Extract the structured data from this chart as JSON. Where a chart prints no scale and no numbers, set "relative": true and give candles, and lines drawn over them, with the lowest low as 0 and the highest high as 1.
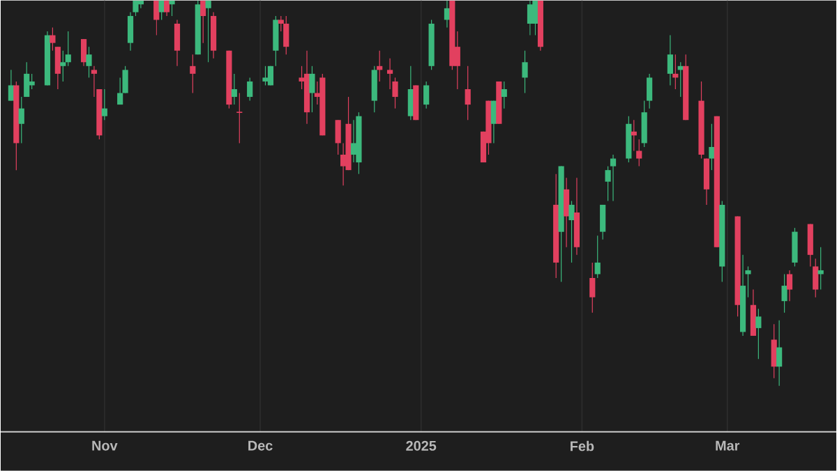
{
  "chart_data": {
    "type": "candlestick",
    "relative": true,
    "grid": "x",
    "colors": [
      "#3cb97d",
      "#e2405f",
      "#3cb97d",
      "#3cb97d",
      "#3cb97d",
      "#3cb97d",
      "#e2405f",
      "#e2405f",
      "#3cb97d",
      "#3cb97d",
      "#e2405f",
      "#3cb97d",
      "#e2405f",
      "#e2405f",
      "#3cb97d",
      "#3cb97d",
      "#3cb97d",
      "#3cb97d",
      "#3cb97d",
      "#3cb97d",
      "#e2405f",
      "#3cb97d",
      "#e2405f",
      "#3cb97d",
      "#e2405f",
      "#e2405f",
      "#3cb97d",
      "#e2405f",
      "#3cb97d",
      "#e2405f",
      "#e2405f",
      "#3cb97d",
      "#e2405f",
      "#3cb97d",
      "#3cb97d",
      "#3cb97d",
      "#3cb97d",
      "#e2405f",
      "#e2405f",
      "#e2405f",
      "#e2405f",
      "#3cb97d",
      "#e2405f",
      "#e2405f",
      "#e2405f",
      "#e2405f",
      "#e2405f",
      "#3cb97d",
      "#3cb97d",
      "#3cb97d",
      "#e2405f",
      "#e2405f",
      "#e2405f",
      "#3cb97d",
      "#e2405f",
      "#3cb97d",
      "#3cb97d",
      "#3cb97d",
      "#e2405f",
      "#e2405f",
      "#e2405f",
      "#e2405f",
      "#e2405f",
      "#3cb97d",
      "#e2405f",
      "#3cb97d",
      "#3cb97d",
      "#3cb97d",
      "#3cb97d",
      "#e2405f",
      "#e2405f",
      "#3cb97d",
      "#e2405f",
      "#3cb97d",
      "#e2405f",
      "#e2405f",
      "#3cb97d",
      "#3cb97d",
      "#3cb97d",
      "#3cb97d",
      "#3cb97d",
      "#e2405f",
      "#e2405f",
      "#3cb97d",
      "#3cb97d",
      "#3cb97d",
      "#e2405f",
      "#3cb97d",
      "#e2405f",
      "#e2405f",
      "#e2405f",
      "#3cb97d",
      "#e2405f",
      "#3cb97d",
      "#e2405f",
      "#3cb97d",
      "#3cb97d",
      "#e2405f",
      "#3cb97d",
      "#e2405f",
      "#3cb97d",
      "#3cb97d",
      "#e2405f",
      "#3cb97d",
      "#e2405f",
      "#e2405f",
      "#3cb97d"
    ],
    "xlim": [
      "2024-10-12",
      "2025-03-22"
    ],
    "xticks": [
      {
        "value": "2024-11-01",
        "label": "Nov"
      },
      {
        "value": "2024-12-01",
        "label": "Dec"
      },
      {
        "value": "2025-01-01",
        "label": "2025"
      },
      {
        "value": "2025-02-01",
        "label": "Feb"
      },
      {
        "value": "2025-03-01",
        "label": "Mar"
      }
    ],
    "x": [
      "2024-10-14",
      "2024-10-15",
      "2024-10-16",
      "2024-10-17",
      "2024-10-18",
      "2024-10-21",
      "2024-10-22",
      "2024-10-23",
      "2024-10-24",
      "2024-10-25",
      "2024-10-28",
      "2024-10-29",
      "2024-10-30",
      "2024-10-31",
      "2024-11-01",
      "2024-11-04",
      "2024-11-05",
      "2024-11-06",
      "2024-11-07",
      "2024-11-08",
      "2024-11-11",
      "2024-11-12",
      "2024-11-13",
      "2024-11-14",
      "2024-11-15",
      "2024-11-18",
      "2024-11-19",
      "2024-11-20",
      "2024-11-21",
      "2024-11-22",
      "2024-11-25",
      "2024-11-26",
      "2024-11-27",
      "2024-11-29",
      "2024-12-02",
      "2024-12-03",
      "2024-12-04",
      "2024-12-05",
      "2024-12-06",
      "2024-12-09",
      "2024-12-10",
      "2024-12-11",
      "2024-12-12",
      "2024-12-13",
      "2024-12-16",
      "2024-12-17",
      "2024-12-18",
      "2024-12-19",
      "2024-12-20",
      "2024-12-23",
      "2024-12-24",
      "2024-12-26",
      "2024-12-27",
      "2024-12-30",
      "2024-12-31",
      "2025-01-02",
      "2025-01-03",
      "2025-01-06",
      "2025-01-07",
      "2025-01-08",
      "2025-01-10",
      "2025-01-13",
      "2025-01-14",
      "2025-01-15",
      "2025-01-16",
      "2025-01-17",
      "2025-01-21",
      "2025-01-22",
      "2025-01-23",
      "2025-01-24",
      "2025-01-27",
      "2025-01-28",
      "2025-01-29",
      "2025-01-30",
      "2025-01-31",
      "2025-02-03",
      "2025-02-04",
      "2025-02-05",
      "2025-02-06",
      "2025-02-07",
      "2025-02-10",
      "2025-02-11",
      "2025-02-12",
      "2025-02-13",
      "2025-02-14",
      "2025-02-18",
      "2025-02-19",
      "2025-02-20",
      "2025-02-21",
      "2025-02-24",
      "2025-02-25",
      "2025-02-26",
      "2025-02-27",
      "2025-02-28",
      "2025-03-03",
      "2025-03-04",
      "2025-03-05",
      "2025-03-06",
      "2025-03-07",
      "2025-03-10",
      "2025-03-11",
      "2025-03-12",
      "2025-03-13",
      "2025-03-14",
      "2025-03-17",
      "2025-03-18",
      "2025-03-19"
    ],
    "ohlc": [
      [
        0.74,
        0.82,
        0.74,
        0.78
      ],
      [
        0.78,
        0.79,
        0.56,
        0.63
      ],
      [
        0.68,
        0.75,
        0.63,
        0.72
      ],
      [
        0.75,
        0.84,
        0.75,
        0.81
      ],
      [
        0.78,
        0.81,
        0.77,
        0.79
      ],
      [
        0.78,
        0.92,
        0.78,
        0.91
      ],
      [
        0.91,
        0.93,
        0.87,
        0.89
      ],
      [
        0.88,
        0.88,
        0.77,
        0.81
      ],
      [
        0.83,
        0.87,
        0.79,
        0.84
      ],
      [
        0.84,
        0.92,
        0.83,
        0.86
      ],
      [
        0.9,
        0.9,
        0.83,
        0.84
      ],
      [
        0.83,
        0.88,
        0.8,
        0.86
      ],
      [
        0.82,
        0.83,
        0.75,
        0.81
      ],
      [
        0.77,
        0.77,
        0.64,
        0.65
      ],
      [
        0.7,
        0.77,
        0.69,
        0.72
      ],
      [
        0.73,
        0.8,
        0.73,
        0.76
      ],
      [
        0.76,
        0.83,
        0.76,
        0.82
      ],
      [
        0.89,
        0.97,
        0.87,
        0.96
      ],
      [
        0.97,
        1,
        0.96,
        1
      ],
      [
        0.99,
        1,
        0.98,
        1
      ],
      [
        1,
        1,
        0.91,
        0.95
      ],
      [
        0.97,
        1,
        0.95,
        1
      ],
      [
        1,
        1,
        0.96,
        0.97
      ],
      [
        0.99,
        1,
        0.96,
        1
      ],
      [
        0.94,
        0.95,
        0.83,
        0.87
      ],
      [
        0.83,
        0.86,
        0.76,
        0.81
      ],
      [
        0.86,
        1,
        0.86,
        0.99
      ],
      [
        1,
        1,
        0.89,
        0.96
      ],
      [
        0.98,
        1,
        0.84,
        1
      ],
      [
        0.96,
        0.97,
        0.85,
        0.87
      ],
      [
        0.87,
        0.87,
        0.72,
        0.73
      ],
      [
        0.75,
        0.81,
        0.73,
        0.77
      ],
      [
        0.71,
        0.76,
        0.63,
        0.71
      ],
      [
        0.75,
        0.8,
        0.74,
        0.79
      ],
      [
        0.79,
        0.83,
        0.78,
        0.8
      ],
      [
        0.78,
        0.83,
        0.78,
        0.83
      ],
      [
        0.87,
        0.96,
        0.83,
        0.95
      ],
      [
        0.95,
        0.96,
        0.92,
        0.94
      ],
      [
        0.94,
        0.96,
        0.86,
        0.88
      ],
      [
        0.8,
        0.83,
        0.77,
        0.79
      ],
      [
        0.81,
        0.87,
        0.68,
        0.71
      ],
      [
        0.76,
        0.83,
        0.71,
        0.81
      ],
      [
        0.76,
        0.79,
        0.73,
        0.75
      ],
      [
        0.8,
        0.81,
        0.65,
        0.65
      ],
      [
        0.69,
        0.69,
        0.6,
        0.63
      ],
      [
        0.6,
        0.63,
        0.52,
        0.57
      ],
      [
        0.68,
        0.75,
        0.56,
        0.56
      ],
      [
        0.6,
        0.69,
        0.58,
        0.63
      ],
      [
        0.58,
        0.71,
        0.55,
        0.7
      ],
      [
        0.74,
        0.83,
        0.71,
        0.82
      ],
      [
        0.83,
        0.87,
        0.79,
        0.82
      ],
      [
        0.82,
        0.85,
        0.77,
        0.81
      ],
      [
        0.79,
        0.8,
        0.72,
        0.75
      ],
      [
        0.7,
        0.83,
        0.69,
        0.77
      ],
      [
        0.78,
        0.78,
        0.69,
        0.69
      ],
      [
        0.73,
        0.79,
        0.72,
        0.78
      ],
      [
        0.83,
        0.95,
        0.82,
        0.94
      ],
      [
        0.95,
        1,
        0.93,
        0.98
      ],
      [
        1,
        1,
        0.82,
        0.83
      ],
      [
        0.88,
        0.92,
        0.77,
        0.83
      ],
      [
        0.77,
        0.83,
        0.69,
        0.73
      ],
      [
        0.66,
        0.66,
        0.58,
        0.58
      ],
      [
        0.74,
        0.74,
        0.6,
        0.63
      ],
      [
        0.68,
        0.74,
        0.63,
        0.74
      ],
      [
        0.79,
        0.79,
        0.68,
        0.68
      ],
      [
        0.75,
        0.79,
        0.72,
        0.77
      ],
      [
        0.8,
        0.87,
        0.76,
        0.84
      ],
      [
        0.94,
        1,
        0.91,
        0.99
      ],
      [
        0.94,
        1,
        0.91,
        1
      ],
      [
        1,
        1,
        0.87,
        0.88
      ],
      [
        0.47,
        0.55,
        0.28,
        0.32
      ],
      [
        0.4,
        0.57,
        0.27,
        0.57
      ],
      [
        0.51,
        0.54,
        0.36,
        0.44
      ],
      [
        0.43,
        0.48,
        0.32,
        0.47
      ],
      [
        0.45,
        0.54,
        0.34,
        0.36
      ],
      [
        0.28,
        0.32,
        0.19,
        0.23
      ],
      [
        0.29,
        0.39,
        0.28,
        0.32
      ],
      [
        0.4,
        0.47,
        0.38,
        0.47
      ],
      [
        0.53,
        0.57,
        0.48,
        0.56
      ],
      [
        0.57,
        0.6,
        0.48,
        0.59
      ],
      [
        0.59,
        0.7,
        0.58,
        0.68
      ],
      [
        0.66,
        0.69,
        0.61,
        0.65
      ],
      [
        0.61,
        0.64,
        0.57,
        0.59
      ],
      [
        0.63,
        0.74,
        0.62,
        0.71
      ],
      [
        0.74,
        0.81,
        0.72,
        0.8
      ],
      [
        0.81,
        0.91,
        0.78,
        0.86
      ],
      [
        0.81,
        0.86,
        0.77,
        0.8
      ],
      [
        0.82,
        0.84,
        0.75,
        0.83
      ],
      [
        0.83,
        0.86,
        0.69,
        0.69
      ],
      [
        0.74,
        0.79,
        0.59,
        0.6
      ],
      [
        0.59,
        0.59,
        0.47,
        0.51
      ],
      [
        0.59,
        0.68,
        0.56,
        0.62
      ],
      [
        0.7,
        0.7,
        0.36,
        0.36
      ],
      [
        0.31,
        0.48,
        0.27,
        0.47
      ],
      [
        0.44,
        0.44,
        0.18,
        0.21
      ],
      [
        0.14,
        0.34,
        0.13,
        0.26
      ],
      [
        0.29,
        0.31,
        0.23,
        0.3
      ],
      [
        0.21,
        0.25,
        0.13,
        0.13
      ],
      [
        0.15,
        0.2,
        0.07,
        0.18
      ],
      [
        0.12,
        0.16,
        0.02,
        0.05
      ],
      [
        0.05,
        0.17,
        0,
        0.1
      ],
      [
        0.22,
        0.29,
        0.19,
        0.26
      ],
      [
        0.29,
        0.3,
        0.22,
        0.25
      ],
      [
        0.32,
        0.41,
        0.31,
        0.4
      ],
      [
        0.42,
        0.42,
        0.31,
        0.34
      ],
      [
        0.31,
        0.33,
        0.23,
        0.25
      ],
      [
        0.29,
        0.36,
        0.25,
        0.3
      ]
    ]
  }
}
